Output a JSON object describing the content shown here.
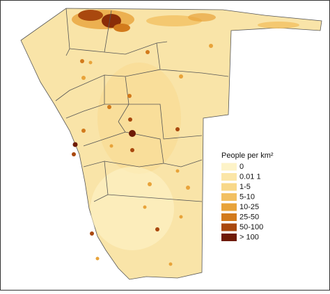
{
  "legend": {
    "title": "People per km²",
    "items": [
      {
        "label": "0",
        "color": "#fdf3c8"
      },
      {
        "label": "0.01 1",
        "color": "#fbe6a8"
      },
      {
        "label": "1-5",
        "color": "#f8d889"
      },
      {
        "label": "5-10",
        "color": "#f2c062"
      },
      {
        "label": "10-25",
        "color": "#e8a33a"
      },
      {
        "label": "25-50",
        "color": "#d27a1c"
      },
      {
        "label": "50-100",
        "color": "#a9480e"
      },
      {
        "label": "> 100",
        "color": "#6e1a05"
      }
    ]
  }
}
